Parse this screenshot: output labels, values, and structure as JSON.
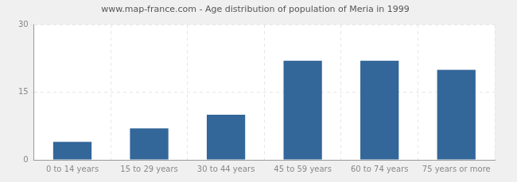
{
  "chart_data": {
    "type": "bar",
    "title": "www.map-france.com - Age distribution of population of Meria in 1999",
    "categories": [
      "0 to 14 years",
      "15 to 29 years",
      "30 to 44 years",
      "45 to 59 years",
      "60 to 74 years",
      "75 years or more"
    ],
    "values": [
      4,
      7,
      10,
      22,
      22,
      20
    ],
    "color": "#336699",
    "ylim": [
      0,
      30
    ],
    "yticks": [
      0,
      15,
      30
    ],
    "grid": true
  }
}
